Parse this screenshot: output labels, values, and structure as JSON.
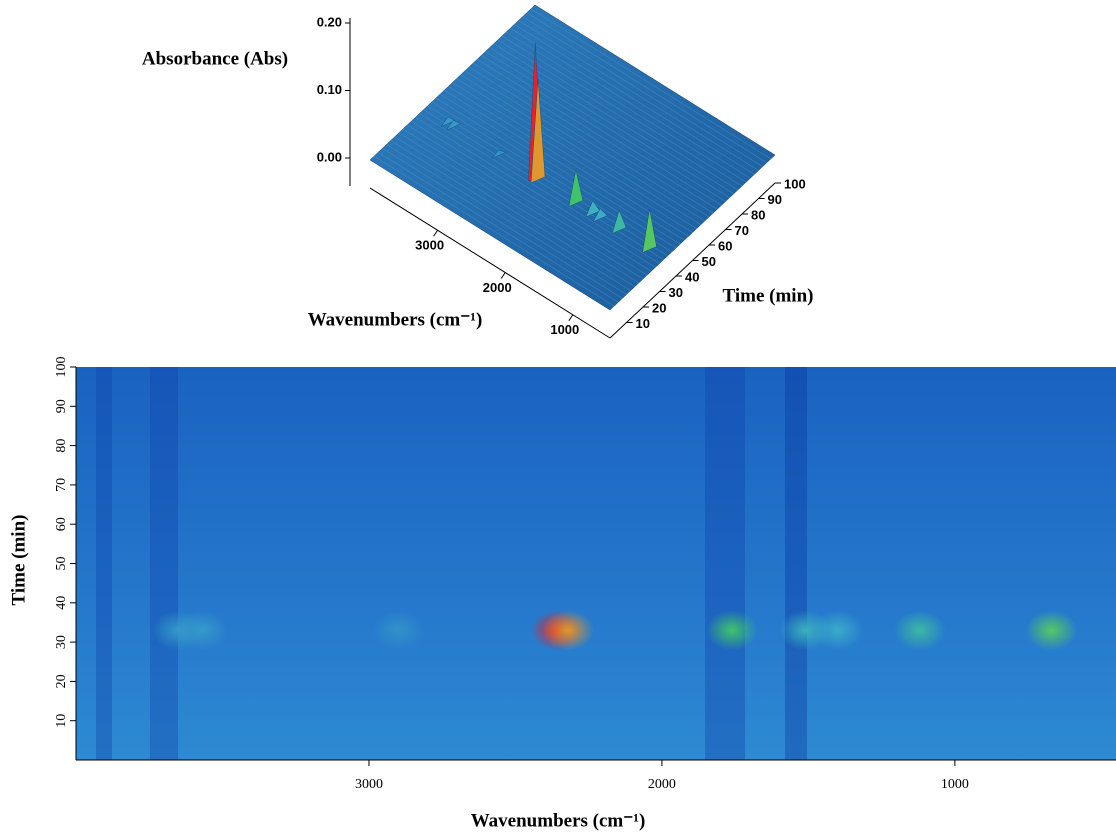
{
  "chart_data": [
    {
      "type": "surface3d",
      "zlabel": "Absorbance (Abs)",
      "xlabel": "Wavenumbers (cm⁻¹)",
      "ylabel": "Time (min)",
      "xlim": [
        4000,
        450
      ],
      "xticks": [
        3000,
        2000,
        1000
      ],
      "ylim": [
        0,
        100
      ],
      "yticks": [
        10,
        20,
        30,
        40,
        50,
        60,
        70,
        80,
        90,
        100
      ],
      "zlim": [
        0,
        0.2
      ],
      "zticks": [
        {
          "value": 0,
          "label": "0.00"
        },
        {
          "value": 0.1,
          "label": "0.10"
        },
        {
          "value": 0.2,
          "label": "0.20"
        }
      ],
      "x": [
        3650,
        3570,
        2900,
        2360,
        2320,
        1760,
        1510,
        1400,
        1120,
        670
      ],
      "y": [
        33,
        33,
        33,
        33,
        33,
        33,
        33,
        33,
        33,
        33
      ],
      "values": [
        0.01,
        0.01,
        0.008,
        0.2,
        0.15,
        0.05,
        0.02,
        0.015,
        0.03,
        0.06
      ]
    },
    {
      "type": "heatmap",
      "xlabel": "Wavenumbers (cm⁻¹)",
      "ylabel": "Time (min)",
      "xlim": [
        4000,
        450
      ],
      "xticks": [
        3000,
        2000,
        1000
      ],
      "ylim": [
        0,
        100
      ],
      "yticks": [
        10,
        20,
        30,
        40,
        50,
        60,
        70,
        80,
        90,
        100
      ],
      "x": [
        3650,
        3570,
        2900,
        2360,
        2320,
        1760,
        1510,
        1400,
        1120,
        670
      ],
      "y": [
        33,
        33,
        33,
        33,
        33,
        33,
        33,
        33,
        33,
        33
      ],
      "values": [
        0.01,
        0.01,
        0.008,
        0.2,
        0.15,
        0.05,
        0.02,
        0.015,
        0.03,
        0.06
      ]
    }
  ]
}
